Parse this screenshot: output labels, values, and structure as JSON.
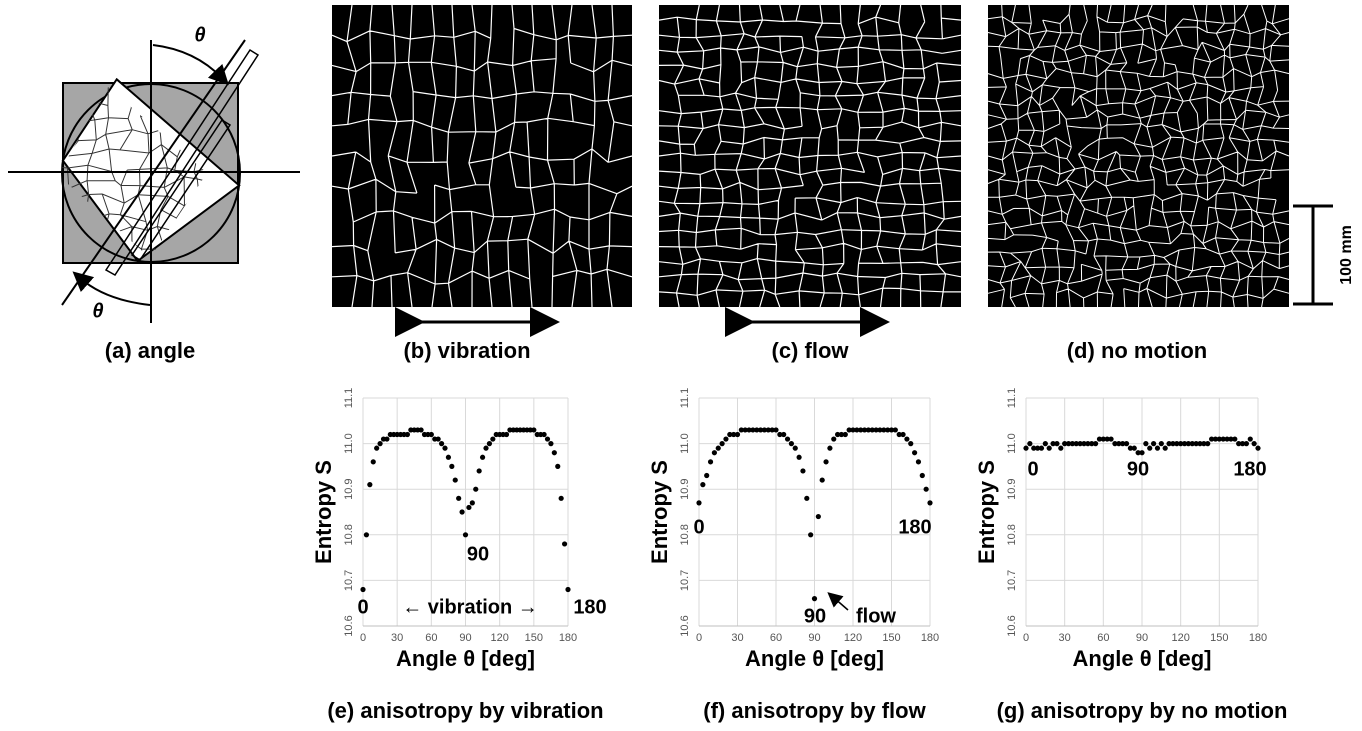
{
  "diagram": {
    "caption": "(a) angle",
    "theta": "θ"
  },
  "images": [
    {
      "caption": "(b) vibration"
    },
    {
      "caption": "(c) flow"
    },
    {
      "caption": "(d) no motion"
    }
  ],
  "scale_bar": "100 mm",
  "chart_data": [
    {
      "type": "scatter",
      "caption": "(e) anisotropy by vibration",
      "xlabel": "Angle θ [deg]",
      "ylabel": "Entropy S",
      "color": "#000000",
      "grid": true,
      "xlim": [
        0,
        180
      ],
      "xticks": [
        0,
        30,
        60,
        90,
        120,
        150,
        180
      ],
      "ylim": [
        10.6,
        11.1
      ],
      "yticks": [
        10.6,
        10.7,
        10.8,
        10.9,
        {
          "value": 11,
          "label": "11.0"
        },
        11.1
      ],
      "annotations": [
        "0",
        "90",
        "180",
        "← vibration →"
      ],
      "x": [
        0,
        3,
        6,
        9,
        12,
        15,
        18,
        21,
        24,
        27,
        30,
        33,
        36,
        39,
        42,
        45,
        48,
        51,
        54,
        57,
        60,
        63,
        66,
        69,
        72,
        75,
        78,
        81,
        84,
        87,
        90,
        93,
        96,
        99,
        102,
        105,
        108,
        111,
        114,
        117,
        120,
        123,
        126,
        129,
        132,
        135,
        138,
        141,
        144,
        147,
        150,
        153,
        156,
        159,
        162,
        165,
        168,
        171,
        174,
        177,
        180
      ],
      "y": [
        10.68,
        10.8,
        10.91,
        10.96,
        10.99,
        11.0,
        11.01,
        11.01,
        11.02,
        11.02,
        11.02,
        11.02,
        11.02,
        11.02,
        11.03,
        11.03,
        11.03,
        11.03,
        11.02,
        11.02,
        11.02,
        11.01,
        11.01,
        11.0,
        10.99,
        10.97,
        10.95,
        10.92,
        10.88,
        10.85,
        10.8,
        10.86,
        10.87,
        10.9,
        10.94,
        10.97,
        10.99,
        11.0,
        11.01,
        11.02,
        11.02,
        11.02,
        11.02,
        11.03,
        11.03,
        11.03,
        11.03,
        11.03,
        11.03,
        11.03,
        11.03,
        11.02,
        11.02,
        11.02,
        11.01,
        11.0,
        10.98,
        10.95,
        10.88,
        10.78,
        10.68
      ]
    },
    {
      "type": "scatter",
      "caption": "(f) anisotropy by flow",
      "xlabel": "Angle θ [deg]",
      "ylabel": "Entropy S",
      "color": "#000000",
      "grid": true,
      "xlim": [
        0,
        180
      ],
      "xticks": [
        0,
        30,
        60,
        90,
        120,
        150,
        180
      ],
      "ylim": [
        10.6,
        11.1
      ],
      "yticks": [
        10.6,
        10.7,
        10.8,
        10.9,
        {
          "value": 11,
          "label": "11.0"
        },
        11.1
      ],
      "annotations": [
        "0",
        "90",
        "180",
        "flow"
      ],
      "x": [
        0,
        3,
        6,
        9,
        12,
        15,
        18,
        21,
        24,
        27,
        30,
        33,
        36,
        39,
        42,
        45,
        48,
        51,
        54,
        57,
        60,
        63,
        66,
        69,
        72,
        75,
        78,
        81,
        84,
        87,
        90,
        93,
        96,
        99,
        102,
        105,
        108,
        111,
        114,
        117,
        120,
        123,
        126,
        129,
        132,
        135,
        138,
        141,
        144,
        147,
        150,
        153,
        156,
        159,
        162,
        165,
        168,
        171,
        174,
        177,
        180
      ],
      "y": [
        10.87,
        10.91,
        10.93,
        10.96,
        10.98,
        10.99,
        11.0,
        11.01,
        11.02,
        11.02,
        11.02,
        11.03,
        11.03,
        11.03,
        11.03,
        11.03,
        11.03,
        11.03,
        11.03,
        11.03,
        11.03,
        11.02,
        11.02,
        11.01,
        11.0,
        10.99,
        10.97,
        10.94,
        10.88,
        10.8,
        10.66,
        10.84,
        10.92,
        10.96,
        10.99,
        11.01,
        11.02,
        11.02,
        11.02,
        11.03,
        11.03,
        11.03,
        11.03,
        11.03,
        11.03,
        11.03,
        11.03,
        11.03,
        11.03,
        11.03,
        11.03,
        11.03,
        11.02,
        11.02,
        11.01,
        11.0,
        10.98,
        10.96,
        10.93,
        10.9,
        10.87
      ]
    },
    {
      "type": "scatter",
      "caption": "(g) anisotropy by no motion",
      "xlabel": "Angle θ [deg]",
      "ylabel": "Entropy S",
      "color": "#000000",
      "grid": true,
      "xlim": [
        0,
        180
      ],
      "xticks": [
        0,
        30,
        60,
        90,
        120,
        150,
        180
      ],
      "ylim": [
        10.6,
        11.1
      ],
      "yticks": [
        10.6,
        10.7,
        10.8,
        10.9,
        {
          "value": 11,
          "label": "11.0"
        },
        11.1
      ],
      "annotations": [
        "0",
        "90",
        "180"
      ],
      "x": [
        0,
        3,
        6,
        9,
        12,
        15,
        18,
        21,
        24,
        27,
        30,
        33,
        36,
        39,
        42,
        45,
        48,
        51,
        54,
        57,
        60,
        63,
        66,
        69,
        72,
        75,
        78,
        81,
        84,
        87,
        90,
        93,
        96,
        99,
        102,
        105,
        108,
        111,
        114,
        117,
        120,
        123,
        126,
        129,
        132,
        135,
        138,
        141,
        144,
        147,
        150,
        153,
        156,
        159,
        162,
        165,
        168,
        171,
        174,
        177,
        180
      ],
      "y": [
        10.99,
        11.0,
        10.99,
        10.99,
        10.99,
        11.0,
        10.99,
        11.0,
        11.0,
        10.99,
        11.0,
        11.0,
        11.0,
        11.0,
        11.0,
        11.0,
        11.0,
        11.0,
        11.0,
        11.01,
        11.01,
        11.01,
        11.01,
        11.0,
        11.0,
        11.0,
        11.0,
        10.99,
        10.99,
        10.98,
        10.98,
        11.0,
        10.99,
        11.0,
        10.99,
        11.0,
        10.99,
        11.0,
        11.0,
        11.0,
        11.0,
        11.0,
        11.0,
        11.0,
        11.0,
        11.0,
        11.0,
        11.0,
        11.01,
        11.01,
        11.01,
        11.01,
        11.01,
        11.01,
        11.01,
        11.0,
        11.0,
        11.0,
        11.01,
        11.0,
        10.99
      ]
    }
  ]
}
